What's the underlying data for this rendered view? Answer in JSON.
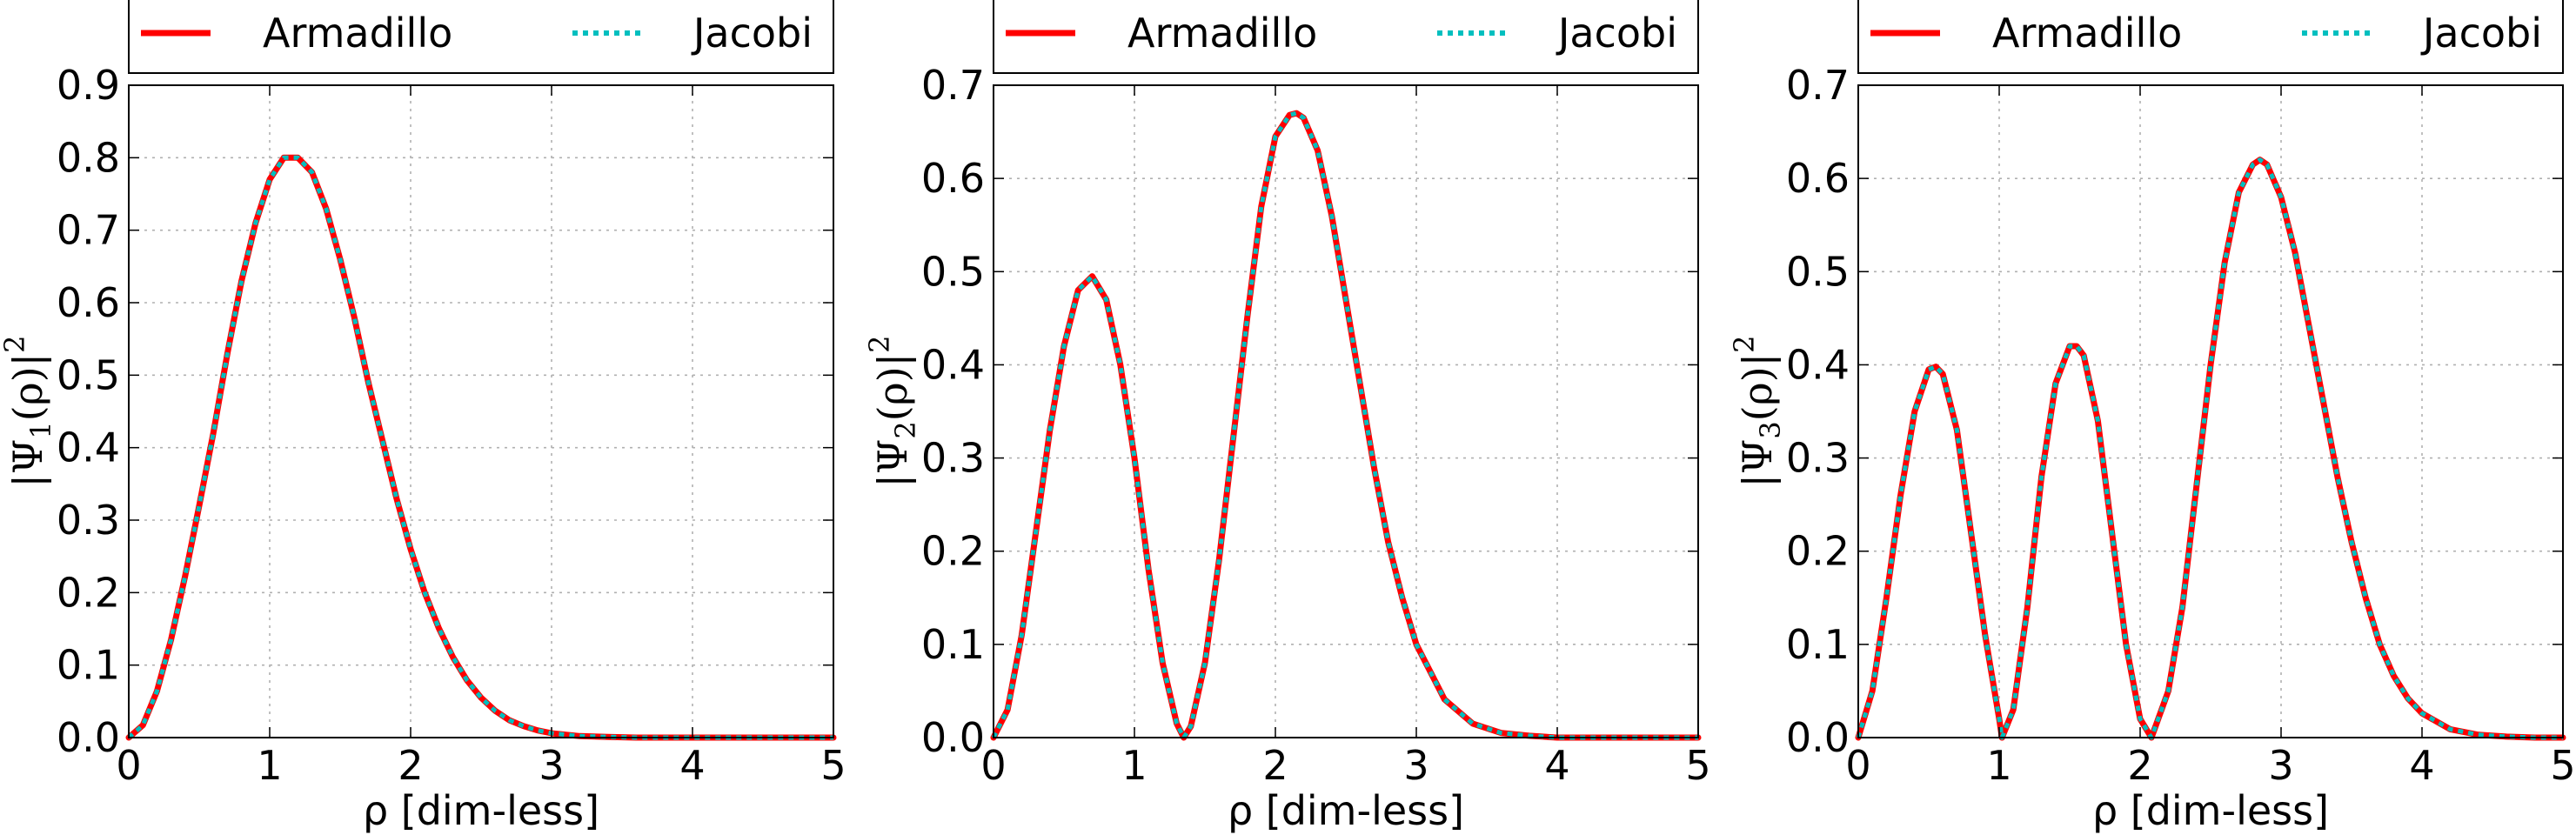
{
  "chart_data": [
    {
      "type": "line",
      "panel": 1,
      "xlabel": "ρ [dim-less]",
      "ylabel": "|Ψ1(ρ)|2",
      "xlim": [
        0,
        5
      ],
      "ylim": [
        0,
        0.9
      ],
      "xticks": [
        "0",
        "1",
        "2",
        "3",
        "4",
        "5"
      ],
      "yticks": [
        "0.0",
        "0.1",
        "0.2",
        "0.3",
        "0.4",
        "0.5",
        "0.6",
        "0.7",
        "0.8",
        "0.9"
      ],
      "grid": true,
      "legend": "top",
      "series": [
        {
          "name": "Armadillo",
          "color": "#ff0000",
          "style": "solid",
          "x": [
            0,
            0.1,
            0.2,
            0.3,
            0.4,
            0.5,
            0.6,
            0.7,
            0.8,
            0.9,
            1.0,
            1.1,
            1.2,
            1.3,
            1.4,
            1.5,
            1.6,
            1.7,
            1.8,
            1.9,
            2.0,
            2.1,
            2.2,
            2.3,
            2.4,
            2.5,
            2.6,
            2.7,
            2.8,
            2.9,
            3.0,
            3.2,
            3.4,
            3.6,
            3.8,
            4.0,
            4.5,
            5.0
          ],
          "y": [
            0,
            0.017,
            0.064,
            0.135,
            0.223,
            0.32,
            0.42,
            0.53,
            0.63,
            0.71,
            0.77,
            0.8,
            0.8,
            0.78,
            0.73,
            0.66,
            0.58,
            0.49,
            0.41,
            0.33,
            0.26,
            0.2,
            0.151,
            0.111,
            0.079,
            0.055,
            0.037,
            0.024,
            0.016,
            0.01,
            0.006,
            0.002,
            0.001,
            0,
            0,
            0,
            0,
            0
          ]
        },
        {
          "name": "Jacobi",
          "color": "#00bfbf",
          "style": "dotted",
          "x": [
            0,
            0.1,
            0.2,
            0.3,
            0.4,
            0.5,
            0.6,
            0.7,
            0.8,
            0.9,
            1.0,
            1.1,
            1.2,
            1.3,
            1.4,
            1.5,
            1.6,
            1.7,
            1.8,
            1.9,
            2.0,
            2.1,
            2.2,
            2.3,
            2.4,
            2.5,
            2.6,
            2.7,
            2.8,
            2.9,
            3.0,
            3.2,
            3.4,
            3.6,
            3.8,
            4.0,
            4.5,
            5.0
          ],
          "y": [
            0,
            0.017,
            0.064,
            0.135,
            0.223,
            0.32,
            0.42,
            0.53,
            0.63,
            0.71,
            0.77,
            0.8,
            0.8,
            0.78,
            0.73,
            0.66,
            0.58,
            0.49,
            0.41,
            0.33,
            0.26,
            0.2,
            0.151,
            0.111,
            0.079,
            0.055,
            0.037,
            0.024,
            0.016,
            0.01,
            0.006,
            0.002,
            0.001,
            0,
            0,
            0,
            0,
            0
          ]
        }
      ]
    },
    {
      "type": "line",
      "panel": 2,
      "xlabel": "ρ [dim-less]",
      "ylabel": "|Ψ2(ρ)|2",
      "xlim": [
        0,
        5
      ],
      "ylim": [
        0,
        0.7
      ],
      "xticks": [
        "0",
        "1",
        "2",
        "3",
        "4",
        "5"
      ],
      "yticks": [
        "0.0",
        "0.1",
        "0.2",
        "0.3",
        "0.4",
        "0.5",
        "0.6",
        "0.7"
      ],
      "grid": true,
      "legend": "top",
      "series": [
        {
          "name": "Armadillo",
          "color": "#ff0000",
          "style": "solid",
          "x": [
            0,
            0.1,
            0.2,
            0.3,
            0.4,
            0.5,
            0.6,
            0.7,
            0.8,
            0.9,
            1.0,
            1.1,
            1.2,
            1.3,
            1.35,
            1.4,
            1.5,
            1.6,
            1.7,
            1.8,
            1.9,
            2.0,
            2.1,
            2.15,
            2.2,
            2.3,
            2.4,
            2.5,
            2.6,
            2.7,
            2.8,
            2.9,
            3.0,
            3.2,
            3.4,
            3.6,
            3.8,
            4.0,
            4.5,
            5.0
          ],
          "y": [
            0,
            0.03,
            0.11,
            0.22,
            0.33,
            0.42,
            0.48,
            0.495,
            0.47,
            0.4,
            0.3,
            0.18,
            0.08,
            0.015,
            0,
            0.012,
            0.08,
            0.19,
            0.32,
            0.45,
            0.57,
            0.645,
            0.668,
            0.67,
            0.665,
            0.63,
            0.56,
            0.47,
            0.38,
            0.29,
            0.21,
            0.15,
            0.1,
            0.041,
            0.015,
            0.005,
            0.002,
            0,
            0,
            0
          ]
        },
        {
          "name": "Jacobi",
          "color": "#00bfbf",
          "style": "dotted",
          "x": [
            0,
            0.1,
            0.2,
            0.3,
            0.4,
            0.5,
            0.6,
            0.7,
            0.8,
            0.9,
            1.0,
            1.1,
            1.2,
            1.3,
            1.35,
            1.4,
            1.5,
            1.6,
            1.7,
            1.8,
            1.9,
            2.0,
            2.1,
            2.15,
            2.2,
            2.3,
            2.4,
            2.5,
            2.6,
            2.7,
            2.8,
            2.9,
            3.0,
            3.2,
            3.4,
            3.6,
            3.8,
            4.0,
            4.5,
            5.0
          ],
          "y": [
            0,
            0.03,
            0.11,
            0.22,
            0.33,
            0.42,
            0.48,
            0.495,
            0.47,
            0.4,
            0.3,
            0.18,
            0.08,
            0.015,
            0,
            0.012,
            0.08,
            0.19,
            0.32,
            0.45,
            0.57,
            0.645,
            0.668,
            0.67,
            0.665,
            0.63,
            0.56,
            0.47,
            0.38,
            0.29,
            0.21,
            0.15,
            0.1,
            0.041,
            0.015,
            0.005,
            0.002,
            0,
            0,
            0
          ]
        }
      ]
    },
    {
      "type": "line",
      "panel": 3,
      "xlabel": "ρ [dim-less]",
      "ylabel": "|Ψ3(ρ)|2",
      "xlim": [
        0,
        5
      ],
      "ylim": [
        0,
        0.7
      ],
      "xticks": [
        "0",
        "1",
        "2",
        "3",
        "4",
        "5"
      ],
      "yticks": [
        "0.0",
        "0.1",
        "0.2",
        "0.3",
        "0.4",
        "0.5",
        "0.6",
        "0.7"
      ],
      "grid": true,
      "legend": "top",
      "series": [
        {
          "name": "Armadillo",
          "color": "#ff0000",
          "style": "solid",
          "x": [
            0,
            0.1,
            0.2,
            0.3,
            0.4,
            0.5,
            0.55,
            0.6,
            0.7,
            0.8,
            0.9,
            1.0,
            1.02,
            1.1,
            1.2,
            1.3,
            1.4,
            1.5,
            1.55,
            1.6,
            1.7,
            1.8,
            1.9,
            2.0,
            2.08,
            2.2,
            2.3,
            2.4,
            2.5,
            2.6,
            2.7,
            2.8,
            2.85,
            2.9,
            3.0,
            3.1,
            3.2,
            3.3,
            3.4,
            3.5,
            3.6,
            3.7,
            3.8,
            3.9,
            4.0,
            4.2,
            4.4,
            4.6,
            4.8,
            5.0
          ],
          "y": [
            0,
            0.05,
            0.15,
            0.26,
            0.35,
            0.395,
            0.398,
            0.39,
            0.33,
            0.22,
            0.11,
            0.02,
            0,
            0.03,
            0.14,
            0.28,
            0.38,
            0.42,
            0.42,
            0.41,
            0.34,
            0.22,
            0.1,
            0.02,
            0,
            0.05,
            0.14,
            0.27,
            0.4,
            0.51,
            0.585,
            0.615,
            0.62,
            0.615,
            0.58,
            0.52,
            0.44,
            0.36,
            0.28,
            0.21,
            0.15,
            0.1,
            0.066,
            0.042,
            0.026,
            0.009,
            0.003,
            0.001,
            0,
            0
          ]
        },
        {
          "name": "Jacobi",
          "color": "#00bfbf",
          "style": "dotted",
          "x": [
            0,
            0.1,
            0.2,
            0.3,
            0.4,
            0.5,
            0.55,
            0.6,
            0.7,
            0.8,
            0.9,
            1.0,
            1.02,
            1.1,
            1.2,
            1.3,
            1.4,
            1.5,
            1.55,
            1.6,
            1.7,
            1.8,
            1.9,
            2.0,
            2.08,
            2.2,
            2.3,
            2.4,
            2.5,
            2.6,
            2.7,
            2.8,
            2.85,
            2.9,
            3.0,
            3.1,
            3.2,
            3.3,
            3.4,
            3.5,
            3.6,
            3.7,
            3.8,
            3.9,
            4.0,
            4.2,
            4.4,
            4.6,
            4.8,
            5.0
          ],
          "y": [
            0,
            0.05,
            0.15,
            0.26,
            0.35,
            0.395,
            0.398,
            0.39,
            0.33,
            0.22,
            0.11,
            0.02,
            0,
            0.03,
            0.14,
            0.28,
            0.38,
            0.42,
            0.42,
            0.41,
            0.34,
            0.22,
            0.1,
            0.02,
            0,
            0.05,
            0.14,
            0.27,
            0.4,
            0.51,
            0.585,
            0.615,
            0.62,
            0.615,
            0.58,
            0.52,
            0.44,
            0.36,
            0.28,
            0.21,
            0.15,
            0.1,
            0.066,
            0.042,
            0.026,
            0.009,
            0.003,
            0.001,
            0,
            0
          ]
        }
      ]
    }
  ]
}
